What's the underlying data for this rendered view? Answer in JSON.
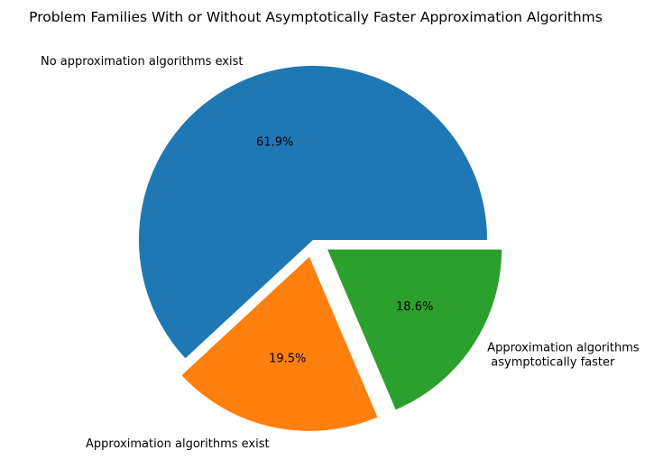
{
  "chart_data": {
    "type": "pie",
    "title": "Problem Families With or Without Asymptotically Faster Approximation Algorithms",
    "slices": [
      {
        "label": [
          "No approximation algorithms exist"
        ],
        "value": 61.9,
        "pct_label": "61.9%",
        "color": "#1f77b4",
        "explode": 0
      },
      {
        "label": [
          "Approximation algorithms exist"
        ],
        "value": 19.5,
        "pct_label": "19.5%",
        "color": "#ff7f0e",
        "explode": 0.1
      },
      {
        "label": [
          "Approximation algorithms",
          " asymptotically faster"
        ],
        "value": 18.6,
        "pct_label": "18.6%",
        "color": "#2ca02c",
        "explode": 0.1
      }
    ],
    "start_angle": 0,
    "direction": "counterclockwise",
    "legend": "none"
  }
}
